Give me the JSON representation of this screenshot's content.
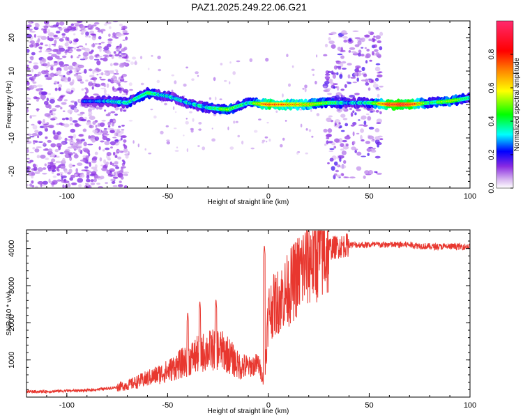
{
  "title": "PAZ1.2025.249.22.06.G21",
  "chart_data": [
    {
      "type": "heatmap",
      "title": "PAZ1.2025.249.22.06.G21",
      "xlabel": "Height of straight line (km)",
      "ylabel": "Frequency (Hz)",
      "xlim": [
        -120,
        100
      ],
      "ylim": [
        -25,
        25
      ],
      "x_ticks": [
        "-100",
        "-50",
        "0",
        "50",
        "100"
      ],
      "y_ticks": [
        "20",
        "10",
        "0",
        "-10",
        "-20"
      ],
      "colorbar": {
        "label": "Normalized spectral amplitude",
        "range": [
          0,
          1
        ],
        "ticks": [
          "0.0",
          "0.2",
          "0.4",
          "0.6",
          "0.8"
        ]
      },
      "ridge": [
        {
          "x": -90,
          "f": 1.0,
          "amp": 0.25
        },
        {
          "x": -80,
          "f": 1.0,
          "amp": 0.35
        },
        {
          "x": -70,
          "f": 0.5,
          "amp": 0.4
        },
        {
          "x": -60,
          "f": 3.5,
          "amp": 0.45
        },
        {
          "x": -50,
          "f": 2.5,
          "amp": 0.35
        },
        {
          "x": -40,
          "f": 0.5,
          "amp": 0.35
        },
        {
          "x": -30,
          "f": -1.0,
          "amp": 0.4
        },
        {
          "x": -20,
          "f": -1.5,
          "amp": 0.55
        },
        {
          "x": -10,
          "f": 0.5,
          "amp": 0.4
        },
        {
          "x": 0,
          "f": 0.0,
          "amp": 0.85
        },
        {
          "x": 10,
          "f": 0.0,
          "amp": 0.75
        },
        {
          "x": 20,
          "f": 0.0,
          "amp": 0.65
        },
        {
          "x": 30,
          "f": 0.5,
          "amp": 0.5
        },
        {
          "x": 40,
          "f": 0.5,
          "amp": 0.35
        },
        {
          "x": 50,
          "f": 0.5,
          "amp": 0.4
        },
        {
          "x": 60,
          "f": 0.0,
          "amp": 0.95
        },
        {
          "x": 70,
          "f": 0.0,
          "amp": 0.95
        },
        {
          "x": 80,
          "f": 0.5,
          "amp": 0.4
        },
        {
          "x": 90,
          "f": 1.0,
          "amp": 0.6
        },
        {
          "x": 100,
          "f": 2.0,
          "amp": 0.4
        }
      ]
    },
    {
      "type": "line",
      "xlabel": "Height of straight line (km)",
      "ylabel": "SNR (10 * v/v)",
      "xlim": [
        -120,
        100
      ],
      "ylim": [
        0,
        4500
      ],
      "x_ticks": [
        "-100",
        "-50",
        "0",
        "50",
        "100"
      ],
      "y_ticks": [
        "1000",
        "2000",
        "3000",
        "4000"
      ],
      "color": "#e8372f",
      "series": [
        {
          "x": [
            -120,
            -110,
            -100,
            -90,
            -80,
            -70,
            -60,
            -50,
            -45,
            -40,
            -35,
            -30,
            -25,
            -20,
            -15,
            -10,
            -5,
            -2,
            0,
            5,
            10,
            15,
            20,
            25,
            30,
            35,
            40,
            50,
            60,
            70,
            80,
            90,
            100
          ],
          "y": [
            150,
            150,
            170,
            180,
            230,
            320,
            500,
            700,
            850,
            1000,
            1150,
            1250,
            1300,
            1150,
            850,
            800,
            900,
            400,
            2300,
            2600,
            2900,
            3300,
            3700,
            3900,
            4000,
            4050,
            4100,
            4100,
            4100,
            4100,
            4050,
            4050,
            4050
          ]
        }
      ],
      "spikes": [
        {
          "x": -40,
          "y": 2300
        },
        {
          "x": -34,
          "y": 2600
        },
        {
          "x": -26,
          "y": 2650
        },
        {
          "x": -2,
          "y": 4100
        }
      ]
    }
  ]
}
